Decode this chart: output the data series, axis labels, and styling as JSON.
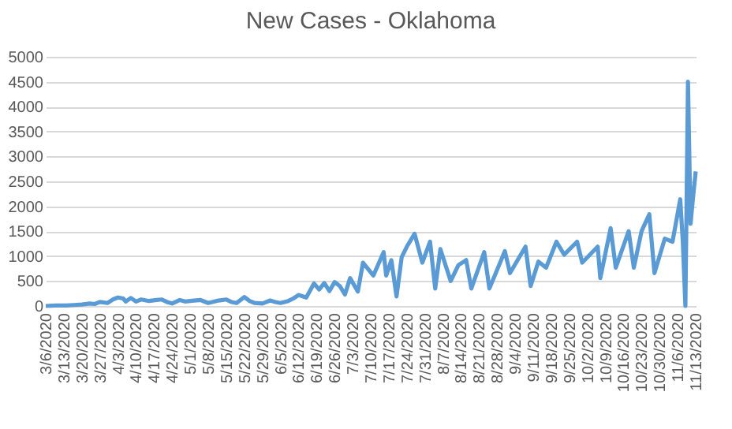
{
  "chart_data": {
    "type": "line",
    "title": "New Cases - Oklahoma",
    "x": [
      "2020-03-06",
      "2020-03-10",
      "2020-03-14",
      "2020-03-17",
      "2020-03-20",
      "2020-03-23",
      "2020-03-25",
      "2020-03-27",
      "2020-03-30",
      "2020-04-01",
      "2020-04-03",
      "2020-04-05",
      "2020-04-06",
      "2020-04-08",
      "2020-04-10",
      "2020-04-12",
      "2020-04-15",
      "2020-04-18",
      "2020-04-20",
      "2020-04-22",
      "2020-04-24",
      "2020-04-27",
      "2020-04-29",
      "2020-05-01",
      "2020-05-05",
      "2020-05-08",
      "2020-05-12",
      "2020-05-15",
      "2020-05-17",
      "2020-05-19",
      "2020-05-22",
      "2020-05-24",
      "2020-05-26",
      "2020-05-29",
      "2020-06-01",
      "2020-06-03",
      "2020-06-05",
      "2020-06-08",
      "2020-06-10",
      "2020-06-12",
      "2020-06-15",
      "2020-06-18",
      "2020-06-20",
      "2020-06-22",
      "2020-06-24",
      "2020-06-26",
      "2020-06-28",
      "2020-06-30",
      "2020-07-02",
      "2020-07-05",
      "2020-07-07",
      "2020-07-11",
      "2020-07-15",
      "2020-07-16",
      "2020-07-18",
      "2020-07-20",
      "2020-07-22",
      "2020-07-24",
      "2020-07-27",
      "2020-07-30",
      "2020-08-02",
      "2020-08-04",
      "2020-08-06",
      "2020-08-10",
      "2020-08-13",
      "2020-08-16",
      "2020-08-18",
      "2020-08-23",
      "2020-08-25",
      "2020-08-31",
      "2020-09-02",
      "2020-09-08",
      "2020-09-10",
      "2020-09-13",
      "2020-09-16",
      "2020-09-20",
      "2020-09-23",
      "2020-09-28",
      "2020-09-30",
      "2020-10-06",
      "2020-10-07",
      "2020-10-11",
      "2020-10-13",
      "2020-10-18",
      "2020-10-20",
      "2020-10-23",
      "2020-10-26",
      "2020-10-28",
      "2020-11-01",
      "2020-11-04",
      "2020-11-07",
      "2020-11-08",
      "2020-11-09",
      "2020-11-10",
      "2020-11-11",
      "2020-11-12",
      "2020-11-13"
    ],
    "series": [
      {
        "color": "#5b9bd5",
        "values": [
          0,
          10,
          10,
          20,
          30,
          50,
          40,
          80,
          60,
          130,
          170,
          150,
          90,
          160,
          90,
          130,
          100,
          120,
          130,
          80,
          50,
          120,
          90,
          100,
          120,
          60,
          110,
          130,
          80,
          60,
          180,
          100,
          60,
          50,
          110,
          80,
          60,
          100,
          150,
          220,
          170,
          450,
          330,
          460,
          300,
          480,
          400,
          230,
          560,
          290,
          870,
          610,
          1080,
          610,
          920,
          190,
          980,
          1190,
          1450,
          870,
          1290,
          350,
          1140,
          500,
          820,
          920,
          350,
          1080,
          350,
          1100,
          660,
          1190,
          400,
          890,
          770,
          1290,
          1030,
          1290,
          870,
          1190,
          560,
          1560,
          770,
          1500,
          770,
          1500,
          1840,
          660,
          1350,
          1290,
          2140,
          1290,
          0,
          4500,
          1650,
          2200,
          2700
        ]
      }
    ],
    "xlim": [
      "2020-03-06",
      "2020-11-13"
    ],
    "xticks": [
      {
        "value": "2020-03-06",
        "label": "3/6/2020"
      },
      {
        "value": "2020-03-13",
        "label": "3/13/2020"
      },
      {
        "value": "2020-03-20",
        "label": "3/20/2020"
      },
      {
        "value": "2020-03-27",
        "label": "3/27/2020"
      },
      {
        "value": "2020-04-03",
        "label": "4/3/2020"
      },
      {
        "value": "2020-04-10",
        "label": "4/10/2020"
      },
      {
        "value": "2020-04-17",
        "label": "4/17/2020"
      },
      {
        "value": "2020-04-24",
        "label": "4/24/2020"
      },
      {
        "value": "2020-05-01",
        "label": "5/1/2020"
      },
      {
        "value": "2020-05-08",
        "label": "5/8/2020"
      },
      {
        "value": "2020-05-15",
        "label": "5/15/2020"
      },
      {
        "value": "2020-05-22",
        "label": "5/22/2020"
      },
      {
        "value": "2020-05-29",
        "label": "5/29/2020"
      },
      {
        "value": "2020-06-05",
        "label": "6/5/2020"
      },
      {
        "value": "2020-06-12",
        "label": "6/12/2020"
      },
      {
        "value": "2020-06-19",
        "label": "6/19/2020"
      },
      {
        "value": "2020-06-26",
        "label": "6/26/2020"
      },
      {
        "value": "2020-07-03",
        "label": "7/3/2020"
      },
      {
        "value": "2020-07-10",
        "label": "7/10/2020"
      },
      {
        "value": "2020-07-17",
        "label": "7/17/2020"
      },
      {
        "value": "2020-07-24",
        "label": "7/24/2020"
      },
      {
        "value": "2020-07-31",
        "label": "7/31/2020"
      },
      {
        "value": "2020-08-07",
        "label": "8/7/2020"
      },
      {
        "value": "2020-08-14",
        "label": "8/14/2020"
      },
      {
        "value": "2020-08-21",
        "label": "8/21/2020"
      },
      {
        "value": "2020-08-28",
        "label": "8/28/2020"
      },
      {
        "value": "2020-09-04",
        "label": "9/4/2020"
      },
      {
        "value": "2020-09-11",
        "label": "9/11/2020"
      },
      {
        "value": "2020-09-18",
        "label": "9/18/2020"
      },
      {
        "value": "2020-09-25",
        "label": "9/25/2020"
      },
      {
        "value": "2020-10-02",
        "label": "10/2/2020"
      },
      {
        "value": "2020-10-09",
        "label": "10/9/2020"
      },
      {
        "value": "2020-10-16",
        "label": "10/16/2020"
      },
      {
        "value": "2020-10-23",
        "label": "10/23/2020"
      },
      {
        "value": "2020-10-30",
        "label": "10/30/2020"
      },
      {
        "value": "2020-11-06",
        "label": "11/6/2020"
      },
      {
        "value": "2020-11-13",
        "label": "11/13/2020"
      }
    ],
    "ylim": [
      0,
      5000
    ],
    "yticks": [
      0,
      500,
      1000,
      1500,
      2000,
      2500,
      3000,
      3500,
      4000,
      4500,
      5000
    ],
    "grid": "y"
  }
}
